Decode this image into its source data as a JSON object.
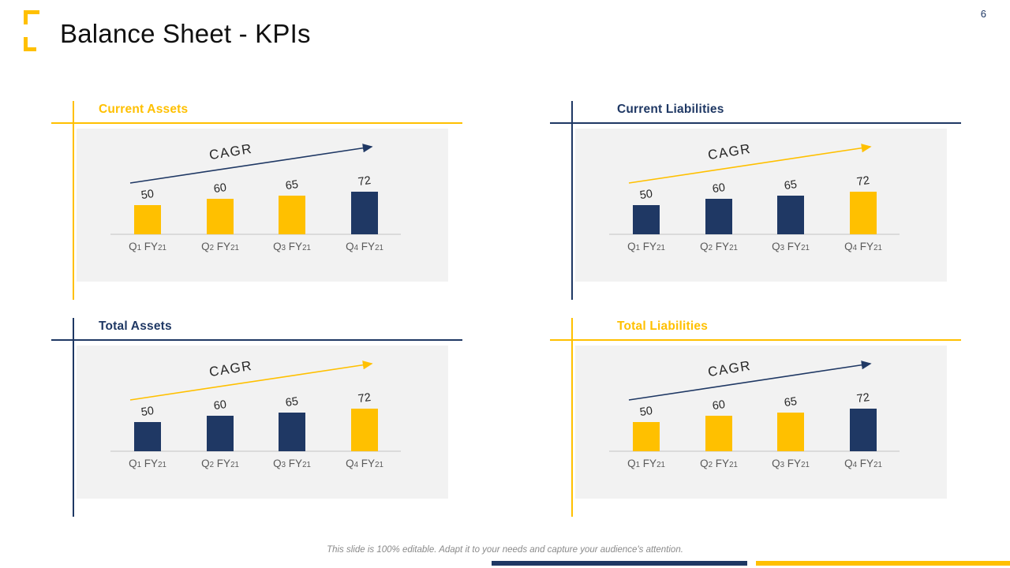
{
  "page": {
    "title": "Balance Sheet - KPIs",
    "slide_number": "6",
    "footer": "This slide is 100% editable. Adapt it to your needs and capture your audience's attention."
  },
  "icons": {
    "logo": "corner-brackets-logo"
  },
  "colors": {
    "navy": "#1F3864",
    "gold": "#FFC000",
    "panel_bg": "#F2F2F2",
    "axis": "#DBDBDB",
    "annotation_text": "#262626",
    "tick_text": "#595959",
    "footer_text": "#8A8A8A",
    "title_text": "#101010"
  },
  "chart_data": [
    {
      "type": "bar",
      "title": "Current Assets",
      "annotation": "CAGR",
      "categories": [
        "Q1 FY21",
        "Q2 FY21",
        "Q3 FY21",
        "Q4 FY21"
      ],
      "values": [
        50,
        60,
        65,
        72
      ],
      "bar_colors": [
        "gold",
        "gold",
        "gold",
        "navy"
      ],
      "accent": "gold",
      "arrow_color": "navy",
      "ylim": [
        0,
        80
      ],
      "grid": false,
      "legend": false
    },
    {
      "type": "bar",
      "title": "Current Liabilities",
      "annotation": "CAGR",
      "categories": [
        "Q1 FY21",
        "Q2 FY21",
        "Q3 FY21",
        "Q4 FY21"
      ],
      "values": [
        50,
        60,
        65,
        72
      ],
      "bar_colors": [
        "navy",
        "navy",
        "navy",
        "gold"
      ],
      "accent": "navy",
      "arrow_color": "gold",
      "ylim": [
        0,
        80
      ],
      "grid": false,
      "legend": false
    },
    {
      "type": "bar",
      "title": "Total Assets",
      "annotation": "CAGR",
      "categories": [
        "Q1 FY21",
        "Q2 FY21",
        "Q3 FY21",
        "Q4 FY21"
      ],
      "values": [
        50,
        60,
        65,
        72
      ],
      "bar_colors": [
        "navy",
        "navy",
        "navy",
        "gold"
      ],
      "accent": "navy",
      "arrow_color": "gold",
      "ylim": [
        0,
        80
      ],
      "grid": false,
      "legend": false
    },
    {
      "type": "bar",
      "title": "Total Liabilities",
      "annotation": "CAGR",
      "categories": [
        "Q1 FY21",
        "Q2 FY21",
        "Q3 FY21",
        "Q4 FY21"
      ],
      "values": [
        50,
        60,
        65,
        72
      ],
      "bar_colors": [
        "gold",
        "gold",
        "gold",
        "navy"
      ],
      "accent": "gold",
      "arrow_color": "navy",
      "ylim": [
        0,
        80
      ],
      "grid": false,
      "legend": false
    }
  ]
}
